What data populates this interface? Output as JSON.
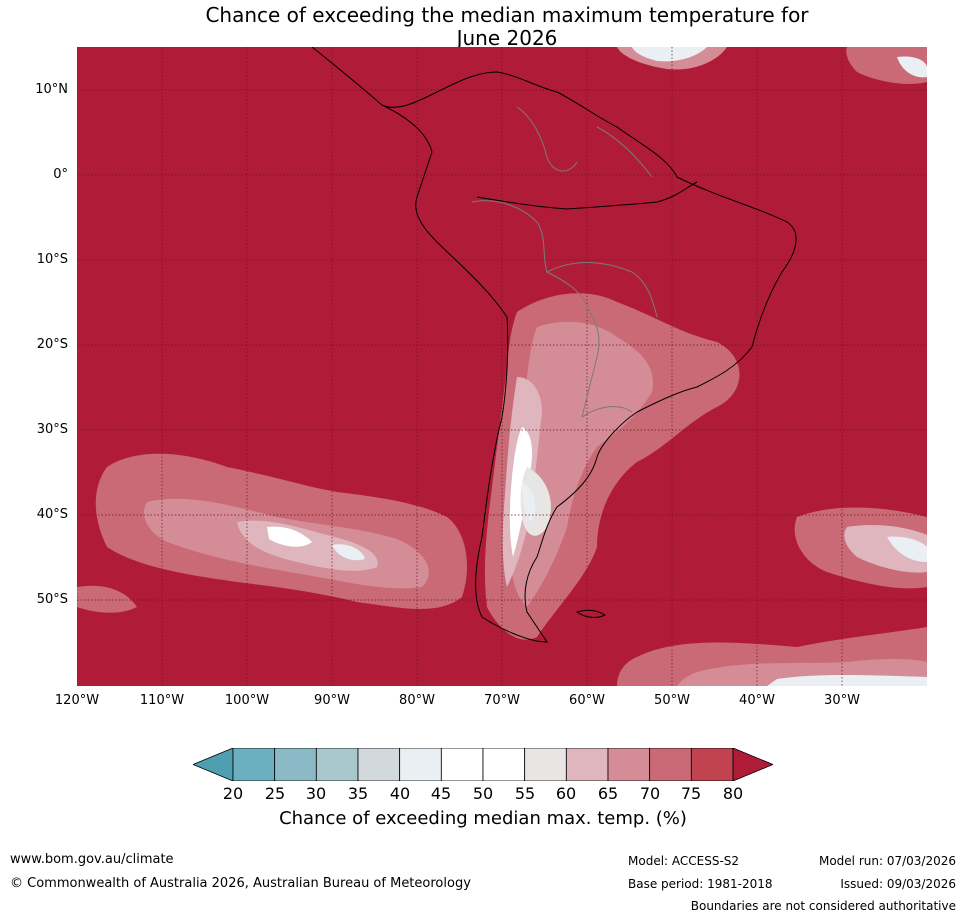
{
  "title": {
    "line1": "Chance of exceeding the median maximum temperature for",
    "line2": "June 2026"
  },
  "map": {
    "region": "South America",
    "background_color": "#b01c38",
    "latitude_labels": [
      "10°N",
      "0°",
      "10°S",
      "20°S",
      "30°S",
      "40°S",
      "50°S"
    ],
    "longitude_labels": [
      "120°W",
      "110°W",
      "100°W",
      "90°W",
      "80°W",
      "70°W",
      "60°W",
      "50°W",
      "40°W",
      "30°W"
    ]
  },
  "colorbar": {
    "title": "Chance of exceeding median max. temp. (%)",
    "ticks": [
      "20",
      "25",
      "30",
      "35",
      "40",
      "45",
      "50",
      "55",
      "60",
      "65",
      "70",
      "75",
      "80"
    ],
    "colors": [
      "#4f9fb0",
      "#6bafc0",
      "#8bb9c6",
      "#a8c8ce",
      "#d1d9dc",
      "#e9eff2",
      "#ffffff",
      "#ffffff",
      "#e8e6e4",
      "#dfb6bd",
      "#d48c96",
      "#c96a76",
      "#c1434f",
      "#b01c38"
    ]
  },
  "footer": {
    "url": "www.bom.gov.au/climate",
    "copyright": "© Commonwealth of Australia 2026, Australian Bureau of Meteorology",
    "model": "Model: ACCESS-S2",
    "model_run": "Model run: 07/03/2026",
    "base_period": "Base period: 1981-2018",
    "issued": "Issued: 09/03/2026",
    "disclaimer": "Boundaries are not considered authoritative"
  }
}
